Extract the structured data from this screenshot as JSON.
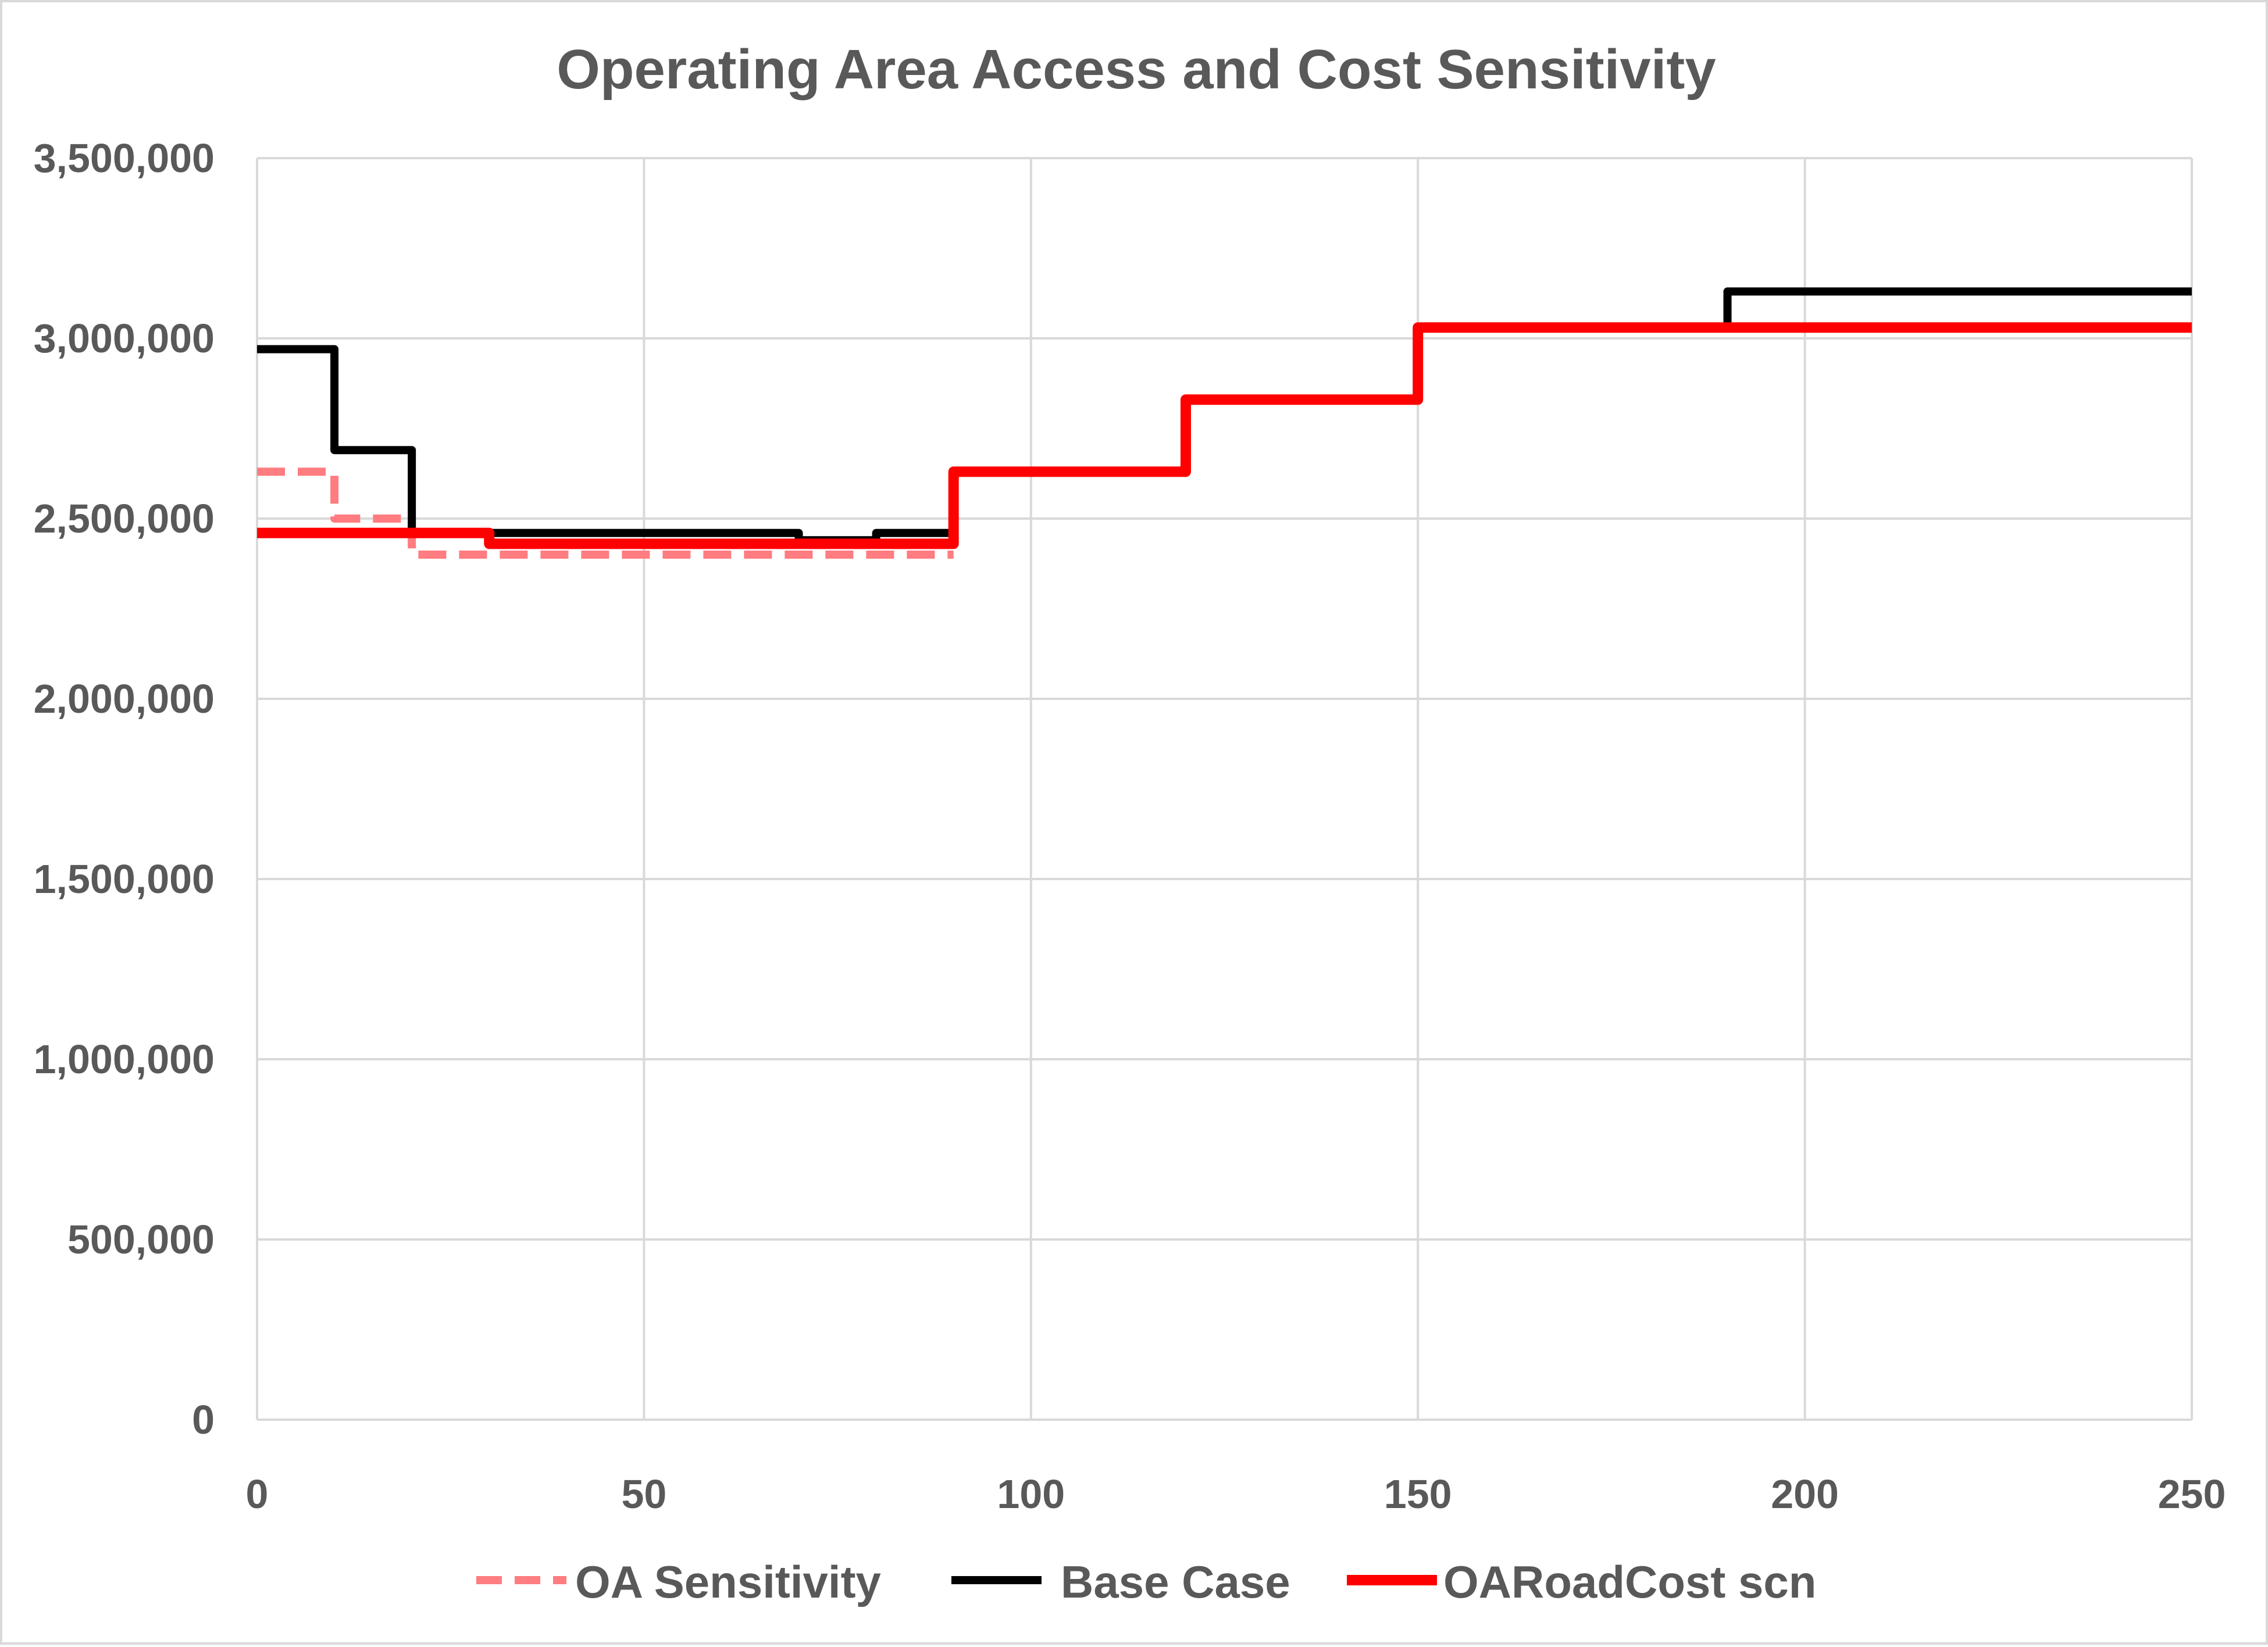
{
  "chart_data": {
    "type": "line",
    "title": "Operating Area Access and Cost Sensitivity",
    "xlabel": "",
    "ylabel": "",
    "xlim": [
      0,
      250
    ],
    "ylim": [
      0,
      3500000
    ],
    "x_ticks": [
      0,
      50,
      100,
      150,
      200,
      250
    ],
    "x_tick_labels": [
      "0",
      "50",
      "100",
      "150",
      "200",
      "250"
    ],
    "y_ticks": [
      0,
      500000,
      1000000,
      1500000,
      2000000,
      2500000,
      3000000,
      3500000
    ],
    "y_tick_labels": [
      "0",
      "500,000",
      "1,000,000",
      "1,500,000",
      "2,000,000",
      "2,500,000",
      "3,000,000",
      "3,500,000"
    ],
    "grid": true,
    "legend_position": "bottom",
    "step": true,
    "series": [
      {
        "name": "OA Sensitivity",
        "color": "#ff7c80",
        "dashed": true,
        "x": [
          0,
          10,
          20,
          90
        ],
        "y": [
          2630000,
          2500000,
          2400000,
          2400000
        ]
      },
      {
        "name": "Base Case",
        "color": "#000000",
        "dashed": false,
        "x": [
          0,
          10,
          20,
          70,
          80,
          90,
          120,
          150,
          190,
          250
        ],
        "y": [
          2970000,
          2690000,
          2460000,
          2440000,
          2460000,
          2630000,
          2830000,
          3030000,
          3130000,
          3130000
        ]
      },
      {
        "name": "OARoadCost scn",
        "color": "#ff0000",
        "dashed": false,
        "x": [
          0,
          30,
          90,
          120,
          150,
          250
        ],
        "y": [
          2460000,
          2430000,
          2630000,
          2830000,
          3030000,
          3030000
        ]
      }
    ]
  }
}
